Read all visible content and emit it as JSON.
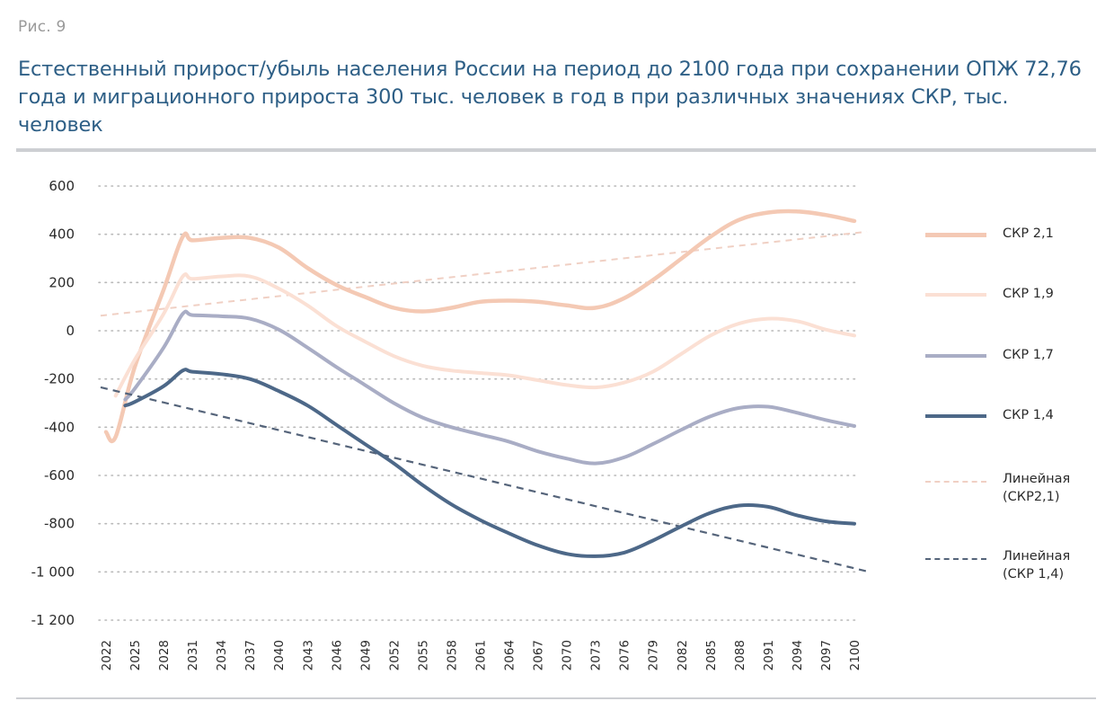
{
  "figure_label": "Рис. 9",
  "title": "Естественный прирост/убыль населения России на период до 2100 года при сохранении ОПЖ 72,76 года и миграционного прироста 300 тыс. человек в год в при различных значениях СКР, тыс. человек",
  "chart_data": {
    "type": "line",
    "title": "Естественный прирост/убыль населения России на период до 2100 года при сохранении ОПЖ 72,76 года и миграционного прироста 300 тыс. человек в год в при различных значениях СКР, тыс. человек",
    "xlabel": "",
    "ylabel": "",
    "xlim": [
      2022,
      2100
    ],
    "ylim": [
      -1200,
      600
    ],
    "grid": true,
    "grid_style": "dotted",
    "legend_position": "right",
    "x_tick_labels": [
      "2022",
      "2025",
      "2028",
      "2031",
      "2034",
      "2037",
      "2040",
      "2043",
      "2046",
      "2049",
      "2052",
      "2055",
      "2058",
      "2061",
      "2064",
      "2067",
      "2070",
      "2073",
      "2076",
      "2079",
      "2082",
      "2085",
      "2088",
      "2091",
      "2094",
      "2097",
      "2100"
    ],
    "y_ticks": [
      600,
      400,
      200,
      0,
      -200,
      -400,
      -600,
      -800,
      -1000,
      -1200
    ],
    "y_tick_labels": [
      "600",
      "400",
      "200",
      "0",
      "-200",
      "-400",
      "-600",
      "-800",
      "-1 000",
      "-1 200"
    ],
    "series": [
      {
        "name": "СКР 2,1",
        "style": "solid",
        "color": "#f4c9b4",
        "x": [
          2022,
          2023,
          2025,
          2028,
          2030,
          2031,
          2034,
          2037,
          2040,
          2043,
          2046,
          2049,
          2052,
          2055,
          2058,
          2061,
          2064,
          2067,
          2070,
          2073,
          2076,
          2079,
          2082,
          2085,
          2088,
          2091,
          2094,
          2097,
          2100
        ],
        "values": [
          -420,
          -440,
          -150,
          170,
          390,
          375,
          385,
          385,
          345,
          260,
          190,
          140,
          95,
          80,
          95,
          120,
          125,
          120,
          105,
          95,
          135,
          210,
          300,
          390,
          460,
          490,
          495,
          480,
          455
        ]
      },
      {
        "name": "СКР 1,9",
        "style": "solid",
        "color": "#fbe0d4",
        "x": [
          2023,
          2025,
          2028,
          2030,
          2031,
          2034,
          2037,
          2040,
          2043,
          2046,
          2049,
          2052,
          2055,
          2058,
          2061,
          2064,
          2067,
          2070,
          2073,
          2076,
          2079,
          2082,
          2085,
          2088,
          2091,
          2094,
          2097,
          2100
        ],
        "values": [
          -270,
          -120,
          70,
          225,
          215,
          225,
          225,
          175,
          105,
          20,
          -45,
          -105,
          -145,
          -165,
          -175,
          -185,
          -205,
          -225,
          -235,
          -215,
          -170,
          -95,
          -20,
          30,
          50,
          40,
          5,
          -20
        ]
      },
      {
        "name": "СКР 1,7",
        "style": "solid",
        "color": "#a9adc5",
        "x": [
          2024,
          2025,
          2028,
          2030,
          2031,
          2034,
          2037,
          2040,
          2043,
          2046,
          2049,
          2052,
          2055,
          2058,
          2061,
          2064,
          2067,
          2070,
          2073,
          2076,
          2079,
          2082,
          2085,
          2088,
          2091,
          2094,
          2097,
          2100
        ],
        "values": [
          -285,
          -240,
          -70,
          70,
          65,
          60,
          50,
          5,
          -70,
          -150,
          -225,
          -300,
          -360,
          -400,
          -430,
          -460,
          -500,
          -530,
          -550,
          -525,
          -470,
          -410,
          -355,
          -320,
          -315,
          -340,
          -370,
          -395
        ]
      },
      {
        "name": "СКР 1,4",
        "style": "solid",
        "color": "#4d6888",
        "x": [
          2024,
          2025,
          2028,
          2030,
          2031,
          2034,
          2037,
          2040,
          2043,
          2046,
          2049,
          2052,
          2055,
          2058,
          2061,
          2064,
          2067,
          2070,
          2073,
          2076,
          2079,
          2082,
          2085,
          2088,
          2091,
          2094,
          2097,
          2100
        ],
        "values": [
          -310,
          -295,
          -230,
          -165,
          -170,
          -180,
          -200,
          -250,
          -310,
          -390,
          -470,
          -550,
          -640,
          -720,
          -785,
          -840,
          -890,
          -925,
          -935,
          -920,
          -870,
          -810,
          -755,
          -725,
          -730,
          -765,
          -790,
          -800
        ]
      },
      {
        "name": "Линейная (СКР2,1)",
        "style": "dashed",
        "color": "#f0d0c4",
        "x": [
          2022,
          2100
        ],
        "values": [
          65,
          405
        ]
      },
      {
        "name": "Линейная (СКР 1,4)",
        "style": "dashed",
        "color": "#55647a",
        "x": [
          2022,
          2100
        ],
        "values": [
          -240,
          -985
        ]
      }
    ]
  },
  "legend": [
    {
      "line1": "СКР 2,1",
      "line2": ""
    },
    {
      "line1": "СКР 1,9",
      "line2": ""
    },
    {
      "line1": "СКР 1,7",
      "line2": ""
    },
    {
      "line1": "СКР 1,4",
      "line2": ""
    },
    {
      "line1": "Линейная",
      "line2": "(СКР2,1)"
    },
    {
      "line1": "Линейная",
      "line2": "(СКР 1,4)"
    }
  ]
}
